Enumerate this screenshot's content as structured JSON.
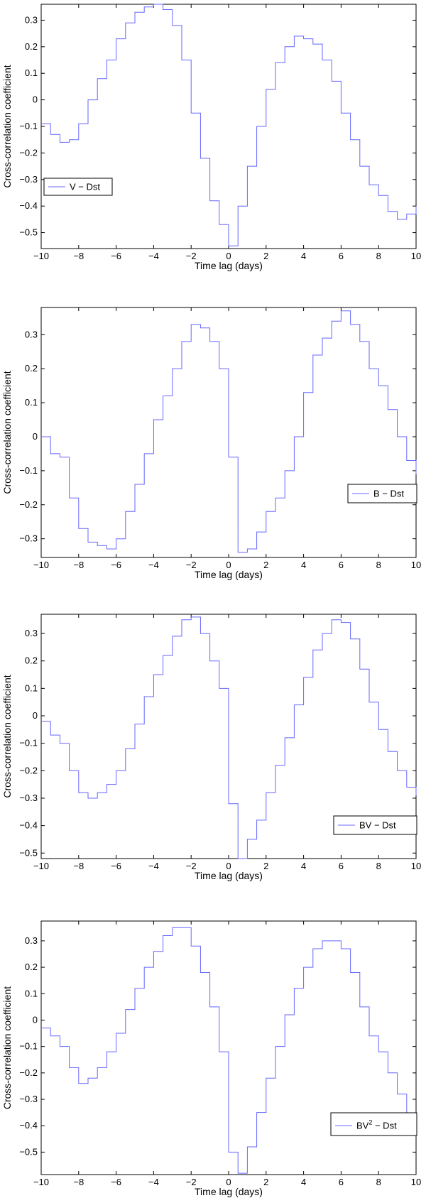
{
  "chart_data": [
    {
      "type": "line",
      "step": true,
      "xlabel": "Time lag (days)",
      "ylabel": "Cross-correlation coefficient",
      "xlim": [
        -10,
        10
      ],
      "ylim": [
        -0.56,
        0.36
      ],
      "xticks": [
        -10,
        -8,
        -6,
        -4,
        -2,
        0,
        2,
        4,
        6,
        8,
        10
      ],
      "yticks": [
        -0.5,
        -0.4,
        -0.3,
        -0.2,
        -0.1,
        0,
        0.1,
        0.2,
        0.3
      ],
      "legend_position": "middle-left",
      "series": [
        {
          "name": "V − Dst",
          "color": "#6666ff",
          "points": [
            [
              -10,
              -0.09
            ],
            [
              -9.5,
              -0.13
            ],
            [
              -9,
              -0.16
            ],
            [
              -8.5,
              -0.15
            ],
            [
              -8,
              -0.09
            ],
            [
              -7.5,
              0.0
            ],
            [
              -7,
              0.08
            ],
            [
              -6.5,
              0.15
            ],
            [
              -6,
              0.23
            ],
            [
              -5.5,
              0.29
            ],
            [
              -5,
              0.33
            ],
            [
              -4.5,
              0.35
            ],
            [
              -4,
              0.36
            ],
            [
              -3.5,
              0.34
            ],
            [
              -3,
              0.28
            ],
            [
              -2.5,
              0.15
            ],
            [
              -2,
              -0.05
            ],
            [
              -1.5,
              -0.22
            ],
            [
              -1,
              -0.38
            ],
            [
              -0.5,
              -0.47
            ],
            [
              0,
              -0.55
            ],
            [
              0.5,
              -0.4
            ],
            [
              1,
              -0.25
            ],
            [
              1.5,
              -0.1
            ],
            [
              2,
              0.04
            ],
            [
              2.5,
              0.14
            ],
            [
              3,
              0.2
            ],
            [
              3.5,
              0.24
            ],
            [
              4,
              0.23
            ],
            [
              4.5,
              0.21
            ],
            [
              5,
              0.15
            ],
            [
              5.5,
              0.07
            ],
            [
              6,
              -0.05
            ],
            [
              6.5,
              -0.15
            ],
            [
              7,
              -0.25
            ],
            [
              7.5,
              -0.32
            ],
            [
              8,
              -0.36
            ],
            [
              8.5,
              -0.42
            ],
            [
              9,
              -0.45
            ],
            [
              9.5,
              -0.43
            ],
            [
              10,
              -0.4
            ]
          ]
        }
      ]
    },
    {
      "type": "line",
      "step": true,
      "xlabel": "Time lag (days)",
      "ylabel": "Cross-correlation coefficient",
      "xlim": [
        -10,
        10
      ],
      "ylim": [
        -0.355,
        0.38
      ],
      "xticks": [
        -10,
        -8,
        -6,
        -4,
        -2,
        0,
        2,
        4,
        6,
        8,
        10
      ],
      "yticks": [
        -0.3,
        -0.2,
        -0.1,
        0,
        0.1,
        0.2,
        0.3
      ],
      "legend_position": "lower-right",
      "series": [
        {
          "name": "B − Dst",
          "color": "#6666ff",
          "points": [
            [
              -10,
              0.0
            ],
            [
              -9.5,
              -0.05
            ],
            [
              -9,
              -0.06
            ],
            [
              -8.5,
              -0.18
            ],
            [
              -8,
              -0.27
            ],
            [
              -7.5,
              -0.31
            ],
            [
              -7,
              -0.32
            ],
            [
              -6.5,
              -0.33
            ],
            [
              -6,
              -0.3
            ],
            [
              -5.5,
              -0.22
            ],
            [
              -5,
              -0.14
            ],
            [
              -4.5,
              -0.05
            ],
            [
              -4,
              0.05
            ],
            [
              -3.5,
              0.12
            ],
            [
              -3,
              0.2
            ],
            [
              -2.5,
              0.28
            ],
            [
              -2,
              0.33
            ],
            [
              -1.5,
              0.32
            ],
            [
              -1,
              0.28
            ],
            [
              -0.5,
              0.2
            ],
            [
              0,
              -0.06
            ],
            [
              0.5,
              -0.34
            ],
            [
              1,
              -0.33
            ],
            [
              1.5,
              -0.28
            ],
            [
              2,
              -0.22
            ],
            [
              2.5,
              -0.18
            ],
            [
              3,
              -0.1
            ],
            [
              3.5,
              0.0
            ],
            [
              4,
              0.13
            ],
            [
              4.5,
              0.24
            ],
            [
              5,
              0.29
            ],
            [
              5.5,
              0.34
            ],
            [
              6,
              0.37
            ],
            [
              6.5,
              0.33
            ],
            [
              7,
              0.28
            ],
            [
              7.5,
              0.2
            ],
            [
              8,
              0.15
            ],
            [
              8.5,
              0.08
            ],
            [
              9,
              0.0
            ],
            [
              9.5,
              -0.07
            ],
            [
              10,
              -0.11
            ]
          ]
        }
      ]
    },
    {
      "type": "line",
      "step": true,
      "xlabel": "Time lag (days)",
      "ylabel": "Cross-correlation coefficient",
      "xlim": [
        -10,
        10
      ],
      "ylim": [
        -0.52,
        0.37
      ],
      "xticks": [
        -10,
        -8,
        -6,
        -4,
        -2,
        0,
        2,
        4,
        6,
        8,
        10
      ],
      "yticks": [
        -0.5,
        -0.4,
        -0.3,
        -0.2,
        -0.1,
        0,
        0.1,
        0.2,
        0.3
      ],
      "legend_position": "lower-right",
      "series": [
        {
          "name": "BV − Dst",
          "color": "#6666ff",
          "points": [
            [
              -10,
              -0.02
            ],
            [
              -9.5,
              -0.07
            ],
            [
              -9,
              -0.1
            ],
            [
              -8.5,
              -0.2
            ],
            [
              -8,
              -0.28
            ],
            [
              -7.5,
              -0.3
            ],
            [
              -7,
              -0.28
            ],
            [
              -6.5,
              -0.25
            ],
            [
              -6,
              -0.2
            ],
            [
              -5.5,
              -0.12
            ],
            [
              -5,
              -0.03
            ],
            [
              -4.5,
              0.07
            ],
            [
              -4,
              0.15
            ],
            [
              -3.5,
              0.22
            ],
            [
              -3,
              0.29
            ],
            [
              -2.5,
              0.35
            ],
            [
              -2,
              0.36
            ],
            [
              -1.5,
              0.3
            ],
            [
              -1,
              0.2
            ],
            [
              -0.5,
              0.1
            ],
            [
              0,
              -0.32
            ],
            [
              0.5,
              -0.52
            ],
            [
              1,
              -0.45
            ],
            [
              1.5,
              -0.38
            ],
            [
              2,
              -0.28
            ],
            [
              2.5,
              -0.18
            ],
            [
              3,
              -0.08
            ],
            [
              3.5,
              0.04
            ],
            [
              4,
              0.14
            ],
            [
              4.5,
              0.24
            ],
            [
              5,
              0.3
            ],
            [
              5.5,
              0.35
            ],
            [
              6,
              0.34
            ],
            [
              6.5,
              0.28
            ],
            [
              7,
              0.17
            ],
            [
              7.5,
              0.05
            ],
            [
              8,
              -0.05
            ],
            [
              8.5,
              -0.13
            ],
            [
              9,
              -0.2
            ],
            [
              9.5,
              -0.26
            ],
            [
              10,
              -0.29
            ]
          ]
        }
      ]
    },
    {
      "type": "line",
      "step": true,
      "xlabel": "Time lag (days)",
      "ylabel": "Cross-correlation coefficient",
      "xlim": [
        -10,
        10
      ],
      "ylim": [
        -0.585,
        0.375
      ],
      "xticks": [
        -10,
        -8,
        -6,
        -4,
        -2,
        0,
        2,
        4,
        6,
        8,
        10
      ],
      "yticks": [
        -0.5,
        -0.4,
        -0.3,
        -0.2,
        -0.1,
        0,
        0.1,
        0.2,
        0.3
      ],
      "legend_position": "lower-right",
      "series": [
        {
          "name": "BV",
          "name_superscript": "2",
          "name_suffix": " − Dst",
          "color": "#6666ff",
          "points": [
            [
              -10,
              -0.03
            ],
            [
              -9.5,
              -0.06
            ],
            [
              -9,
              -0.1
            ],
            [
              -8.5,
              -0.18
            ],
            [
              -8,
              -0.24
            ],
            [
              -7.5,
              -0.22
            ],
            [
              -7,
              -0.18
            ],
            [
              -6.5,
              -0.12
            ],
            [
              -6,
              -0.05
            ],
            [
              -5.5,
              0.04
            ],
            [
              -5,
              0.12
            ],
            [
              -4.5,
              0.2
            ],
            [
              -4,
              0.26
            ],
            [
              -3.5,
              0.32
            ],
            [
              -3,
              0.35
            ],
            [
              -2.5,
              0.35
            ],
            [
              -2,
              0.28
            ],
            [
              -1.5,
              0.18
            ],
            [
              -1,
              0.05
            ],
            [
              -0.5,
              -0.12
            ],
            [
              0,
              -0.5
            ],
            [
              0.5,
              -0.58
            ],
            [
              1,
              -0.48
            ],
            [
              1.5,
              -0.35
            ],
            [
              2,
              -0.22
            ],
            [
              2.5,
              -0.1
            ],
            [
              3,
              0.02
            ],
            [
              3.5,
              0.12
            ],
            [
              4,
              0.2
            ],
            [
              4.5,
              0.27
            ],
            [
              5,
              0.3
            ],
            [
              5.5,
              0.3
            ],
            [
              6,
              0.27
            ],
            [
              6.5,
              0.18
            ],
            [
              7,
              0.05
            ],
            [
              7.5,
              -0.06
            ],
            [
              8,
              -0.12
            ],
            [
              8.5,
              -0.2
            ],
            [
              9,
              -0.28
            ],
            [
              9.5,
              -0.36
            ],
            [
              10,
              -0.37
            ]
          ]
        }
      ]
    }
  ]
}
